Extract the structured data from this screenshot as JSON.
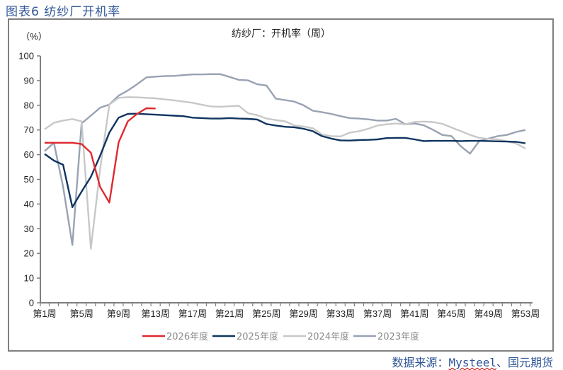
{
  "figure": {
    "label": "图表6  纺纱厂开机率",
    "source_prefix": "数据来源：",
    "source_name": "Mysteel",
    "source_suffix": "、国元期货"
  },
  "chart_data": {
    "type": "line",
    "title": "纺纱厂：开机率（周）",
    "ylabel": "（%）",
    "xlabel": "",
    "ylim": [
      0,
      100
    ],
    "yticks": [
      0,
      10,
      20,
      30,
      40,
      50,
      60,
      70,
      80,
      90,
      100
    ],
    "xticks": [
      "第1周",
      "第5周",
      "第9周",
      "第13周",
      "第17周",
      "第21周",
      "第25周",
      "第29周",
      "第33周",
      "第37周",
      "第41周",
      "第45周",
      "第49周",
      "第53周"
    ],
    "x": [
      1,
      2,
      3,
      4,
      5,
      6,
      7,
      8,
      9,
      10,
      11,
      12,
      13,
      14,
      15,
      16,
      17,
      18,
      19,
      20,
      21,
      22,
      23,
      24,
      25,
      26,
      27,
      28,
      29,
      30,
      31,
      32,
      33,
      34,
      35,
      36,
      37,
      38,
      39,
      40,
      41,
      42,
      43,
      44,
      45,
      46,
      47,
      48,
      49,
      50,
      51,
      52,
      53
    ],
    "legend_position": "bottom",
    "grid": false,
    "series": [
      {
        "name": "2026年度",
        "color": "#e0282e",
        "values": [
          64.8,
          64.8,
          64.8,
          64.8,
          64.3,
          60.8,
          47.0,
          40.6,
          65.0,
          73.5,
          76.5,
          78.8,
          78.7,
          null,
          null,
          null,
          null,
          null,
          null,
          null,
          null,
          null,
          null,
          null,
          null,
          null,
          null,
          null,
          null,
          null,
          null,
          null,
          null,
          null,
          null,
          null,
          null,
          null,
          null,
          null,
          null,
          null,
          null,
          null,
          null,
          null,
          null,
          null,
          null,
          null,
          null,
          null,
          null
        ]
      },
      {
        "name": "2025年度",
        "color": "#0f3460",
        "values": [
          60.3,
          57.6,
          55.9,
          38.7,
          45.0,
          51.0,
          59.5,
          68.9,
          75.0,
          76.5,
          76.6,
          76.4,
          76.2,
          76.0,
          75.8,
          75.6,
          75.0,
          74.8,
          74.6,
          74.6,
          74.8,
          74.6,
          74.5,
          74.2,
          72.4,
          71.8,
          71.3,
          71.1,
          70.5,
          69.5,
          67.5,
          66.5,
          65.8,
          65.7,
          65.9,
          66.0,
          66.2,
          66.7,
          66.8,
          66.8,
          66.2,
          65.5,
          65.6,
          65.6,
          65.6,
          65.5,
          65.6,
          65.6,
          65.5,
          65.4,
          65.3,
          65.2,
          64.6
        ]
      },
      {
        "name": "2024年度",
        "color": "#c8c8c8",
        "values": [
          70.3,
          72.9,
          73.8,
          74.4,
          73.5,
          21.9,
          54.0,
          80.3,
          83.0,
          83.3,
          83.2,
          83.0,
          82.8,
          82.4,
          82.0,
          81.5,
          81.0,
          80.2,
          79.5,
          79.4,
          79.6,
          79.8,
          76.8,
          76.0,
          74.6,
          74.0,
          73.5,
          71.8,
          71.4,
          70.7,
          68.2,
          67.5,
          67.4,
          68.9,
          69.5,
          70.5,
          71.8,
          72.3,
          72.6,
          72.3,
          73.2,
          73.4,
          73.2,
          72.5,
          71.0,
          69.5,
          68.0,
          66.8,
          66.4,
          66.2,
          65.4,
          64.5,
          62.5
        ]
      },
      {
        "name": "2023年度",
        "color": "#98a2b3",
        "values": [
          61.4,
          64.8,
          47.0,
          23.4,
          72.7,
          75.8,
          79.0,
          80.3,
          83.9,
          86.0,
          88.5,
          91.3,
          91.6,
          91.8,
          91.9,
          92.2,
          92.5,
          92.5,
          92.6,
          92.6,
          91.5,
          90.3,
          90.1,
          88.5,
          88.0,
          82.7,
          82.1,
          81.5,
          80.0,
          77.8,
          77.2,
          76.5,
          75.6,
          74.8,
          74.6,
          74.3,
          73.8,
          73.8,
          74.5,
          72.3,
          72.6,
          71.9,
          70.1,
          68.0,
          67.5,
          63.4,
          60.4,
          65.5,
          66.5,
          67.5,
          68.0,
          69.2,
          70.0
        ]
      }
    ]
  }
}
